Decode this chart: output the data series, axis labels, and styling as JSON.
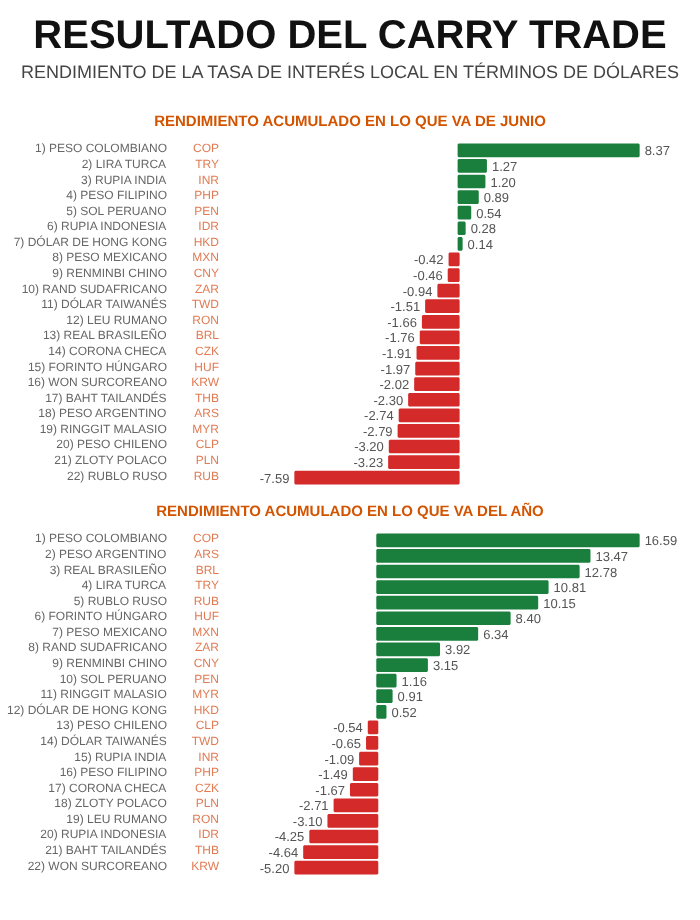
{
  "chart_data": [
    {
      "type": "bar",
      "orientation": "horizontal",
      "title": "RESULTADO DEL CARRY TRADE",
      "subtitle": "RENDIMIENTO DE LA TASA DE INTERÉS LOCAL EN TÉRMINOS DE DÓLARES",
      "xlabel": "RENDIMIENTO ACUMULADO EN LO QUE VA DE JUNIO",
      "categories": [
        "1) PESO COLOMBIANO",
        "2) LIRA TURCA",
        "3) RUPIA INDIA",
        "4) PESO FILIPINO",
        "5) SOL PERUANO",
        "6) RUPIA INDONESIA",
        "7) DÓLAR DE HONG KONG",
        "8) PESO MEXICANO",
        "9) RENMINBI CHINO",
        "10) RAND SUDAFRICANO",
        "11) DÓLAR TAIWANÉS",
        "12) LEU RUMANO",
        "13) REAL BRASILEÑO",
        "14) CORONA CHECA",
        "15) FORINTO HÚNGARO",
        "16) WON SURCOREANO",
        "17) BAHT TAILANDÉS",
        "18) PESO ARGENTINO",
        "19) RINGGIT MALASIO",
        "20) PESO CHILENO",
        "21) ZLOTY POLACO",
        "22) RUBLO RUSO"
      ],
      "y2_categories": [
        "COP",
        "TRY",
        "INR",
        "PHP",
        "PEN",
        "IDR",
        "HKD",
        "MXN",
        "CNY",
        "ZAR",
        "TWD",
        "RON",
        "BRL",
        "CZK",
        "HUF",
        "KRW",
        "THB",
        "ARS",
        "MYR",
        "CLP",
        "PLN",
        "RUB"
      ],
      "values": [
        8.37,
        1.27,
        1.2,
        0.89,
        0.54,
        0.28,
        0.14,
        -0.42,
        -0.46,
        -0.94,
        -1.51,
        -1.66,
        -1.76,
        -1.91,
        -1.97,
        -2.02,
        -2.3,
        -2.74,
        -2.79,
        -3.2,
        -3.23,
        -7.59
      ],
      "value_labels": [
        "8.37",
        "1.27",
        "1.20",
        "0.89",
        "0.54",
        "0.28",
        "0.14",
        "-0.42",
        "-0.46",
        "-0.94",
        "-1.51",
        "-1.66",
        "-1.76",
        "-1.91",
        "-1.97",
        "-2.02",
        "-2.30",
        "-2.74",
        "-2.79",
        "-3.20",
        "-3.23",
        "-7.59"
      ],
      "colors": [
        "#1a7f3c",
        "#1a7f3c",
        "#1a7f3c",
        "#1a7f3c",
        "#1a7f3c",
        "#1a7f3c",
        "#1a7f3c",
        "#d42a2a",
        "#d42a2a",
        "#d42a2a",
        "#d42a2a",
        "#d42a2a",
        "#d42a2a",
        "#d42a2a",
        "#d42a2a",
        "#d42a2a",
        "#d42a2a",
        "#d42a2a",
        "#d42a2a",
        "#d42a2a",
        "#d42a2a",
        "#d42a2a"
      ]
    },
    {
      "type": "bar",
      "orientation": "horizontal",
      "xlabel": "RENDIMIENTO ACUMULADO EN LO QUE VA DEL AÑO",
      "categories": [
        "1) PESO COLOMBIANO",
        "2) PESO ARGENTINO",
        "3) REAL BRASILEÑO",
        "4) LIRA TURCA",
        "5) RUBLO RUSO",
        "6) FORINTO HÚNGARO",
        "7) PESO MEXICANO",
        "8) RAND SUDAFRICANO",
        "9) RENMINBI CHINO",
        "10) SOL PERUANO",
        "11) RINGGIT MALASIO",
        "12) DÓLAR DE HONG KONG",
        "13) PESO CHILENO",
        "14) DÓLAR TAIWANÉS",
        "15) RUPIA INDIA",
        "16) PESO FILIPINO",
        "17) CORONA CHECA",
        "18) ZLOTY POLACO",
        "19) LEU RUMANO",
        "20) RUPIA INDONESIA",
        "21) BAHT TAILANDÉS",
        "22) WON SURCOREANO"
      ],
      "y2_categories": [
        "COP",
        "ARS",
        "BRL",
        "TRY",
        "RUB",
        "HUF",
        "MXN",
        "ZAR",
        "CNY",
        "PEN",
        "MYR",
        "HKD",
        "CLP",
        "TWD",
        "INR",
        "PHP",
        "CZK",
        "PLN",
        "RON",
        "IDR",
        "THB",
        "KRW"
      ],
      "values": [
        16.59,
        13.47,
        12.78,
        10.81,
        10.15,
        8.4,
        6.34,
        3.92,
        3.15,
        1.16,
        0.91,
        0.52,
        -0.54,
        -0.65,
        -1.09,
        -1.49,
        -1.67,
        -2.71,
        -3.1,
        -4.25,
        -4.64,
        -5.2
      ],
      "value_labels": [
        "16.59",
        "13.47",
        "12.78",
        "10.81",
        "10.15",
        "8.40",
        "6.34",
        "3.92",
        "3.15",
        "1.16",
        "0.91",
        "0.52",
        "-0.54",
        "-0.65",
        "-1.09",
        "-1.49",
        "-1.67",
        "-2.71",
        "-3.10",
        "-4.25",
        "-4.64",
        "-5.20"
      ],
      "colors": [
        "#1a7f3c",
        "#1a7f3c",
        "#1a7f3c",
        "#1a7f3c",
        "#1a7f3c",
        "#1a7f3c",
        "#1a7f3c",
        "#1a7f3c",
        "#1a7f3c",
        "#1a7f3c",
        "#1a7f3c",
        "#1a7f3c",
        "#d42a2a",
        "#d42a2a",
        "#d42a2a",
        "#d42a2a",
        "#d42a2a",
        "#d42a2a",
        "#d42a2a",
        "#d42a2a",
        "#d42a2a",
        "#d42a2a"
      ]
    }
  ]
}
